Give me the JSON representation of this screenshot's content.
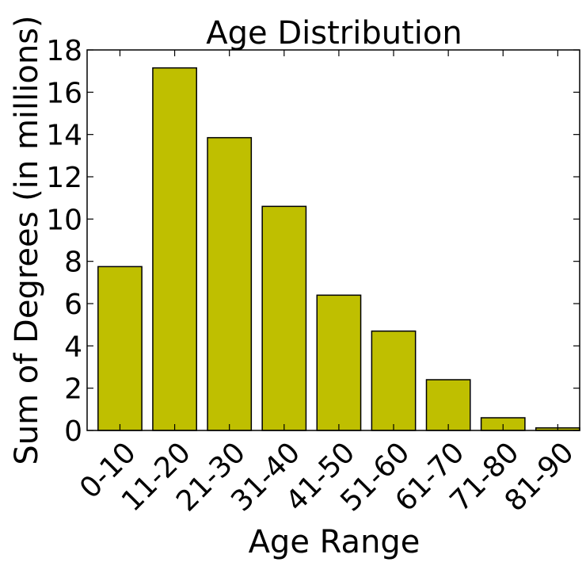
{
  "chart_data": {
    "type": "bar",
    "title": "Age Distribution",
    "xlabel": "Age Range",
    "ylabel": "Sum of Degrees (in millions)",
    "categories": [
      "0-10",
      "11-20",
      "21-30",
      "31-40",
      "41-50",
      "51-60",
      "61-70",
      "71-80",
      "81-90"
    ],
    "values": [
      7.75,
      17.15,
      13.85,
      10.6,
      6.4,
      4.7,
      2.4,
      0.6,
      0.12
    ],
    "ylim": [
      0,
      18
    ],
    "yticks": [
      "0",
      "2",
      "4",
      "6",
      "8",
      "10",
      "12",
      "14",
      "16",
      "18"
    ],
    "bar_color": "#bfbf00",
    "grid": false,
    "legend": "none"
  }
}
